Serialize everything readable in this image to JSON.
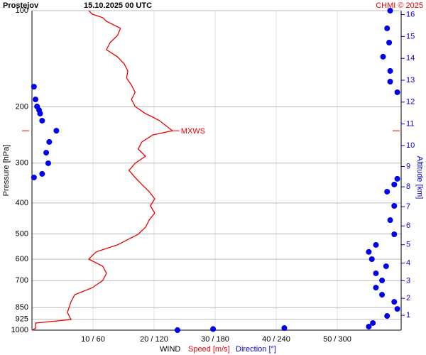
{
  "chart_data": {
    "type": "sounding",
    "title": "Prostejov",
    "subtitle": "15.10.2025 00 UTC",
    "credit": "CHMI © 2025",
    "y_label": "Pressure [hPa]",
    "y2_label": "Altitude [km]",
    "x_label": "WIND",
    "ylim": [
      1000,
      100
    ],
    "yscale": "log",
    "yticks": [
      100,
      200,
      300,
      400,
      500,
      600,
      700,
      850,
      925,
      1000
    ],
    "xlim": [
      0,
      60
    ],
    "x2lim": [
      0,
      360
    ],
    "xticks": [
      {
        "value": 10,
        "label": "10 / 60"
      },
      {
        "value": 20,
        "label": "20 / 120"
      },
      {
        "value": 30,
        "label": "30 / 180"
      },
      {
        "value": 40,
        "label": "40 / 240"
      },
      {
        "value": 50,
        "label": "50 / 300"
      }
    ],
    "y2scale": "standard_atmosphere",
    "y2ticks": [
      1,
      2,
      3,
      4,
      5,
      6,
      7,
      8,
      9,
      10,
      11,
      12,
      13,
      14,
      15,
      16
    ],
    "grid": true,
    "series": [
      {
        "name": "Speed [m/s]",
        "color": "#ee0000",
        "axis": "x",
        "pressure": [
          100,
          102.6,
          105.2,
          108,
          113.6,
          119.6,
          125.9,
          132.5,
          139.4,
          146.8,
          154.4,
          162.6,
          171.1,
          180.1,
          189.6,
          199.5,
          210,
          215.4,
          221,
          237.6,
          244.8,
          257.6,
          271.2,
          285.4,
          300.4,
          316.2,
          332.8,
          350,
          368.6,
          388,
          408.4,
          429.9,
          452.5,
          476.3,
          501.2,
          541,
          569,
          599.5,
          631,
          664,
          699,
          736,
          774.6,
          815.4,
          880,
          926.5,
          950,
          988,
          1000
        ],
        "values": [
          9.3,
          9.9,
          11.6,
          12.2,
          14.5,
          14,
          12.8,
          12.2,
          14,
          15.1,
          15.7,
          15.5,
          16.3,
          16.9,
          16.3,
          16.9,
          18.6,
          19.8,
          20.9,
          23,
          19.8,
          18,
          17.4,
          18.6,
          16.9,
          15.9,
          16.9,
          18,
          19.2,
          20.1,
          19.4,
          20.1,
          19.2,
          18.6,
          17.4,
          14,
          10.5,
          9.3,
          11.6,
          12.2,
          11.6,
          9.9,
          7,
          6.4,
          5.8,
          6.4,
          0.6,
          0.6,
          0
        ]
      },
      {
        "name": "Direction [°]",
        "color": "#0000ee",
        "axis": "x2",
        "pressure": [
          100,
          113.6,
          125.9,
          139.4,
          154.4,
          166.8,
          180.1,
          173,
          189.6,
          199.5,
          204.8,
          210,
          221,
          237.6,
          257.6,
          278.3,
          300.4,
          324.3,
          332.8,
          336,
          350,
          368.6,
          408.4,
          452.5,
          501.2,
          541,
          569,
          599.5,
          631,
          664,
          699,
          736,
          774.6,
          815.4,
          858,
          903,
          950,
          975,
          985,
          992,
          1000
        ],
        "values": [
          352,
          349,
          351,
          345,
          352,
          352,
          359,
          2,
          3.5,
          5,
          7,
          8,
          10,
          24,
          17,
          14,
          16,
          10,
          2,
          359,
          356,
          349,
          356,
          352,
          356,
          338,
          331,
          334,
          348,
          338,
          344,
          338,
          344,
          356,
          359,
          349,
          335,
          331,
          248,
          178,
          143
        ]
      }
    ],
    "annotations": [
      {
        "text": "MXWS",
        "pressure": 237.6,
        "value": 23
      }
    ]
  }
}
